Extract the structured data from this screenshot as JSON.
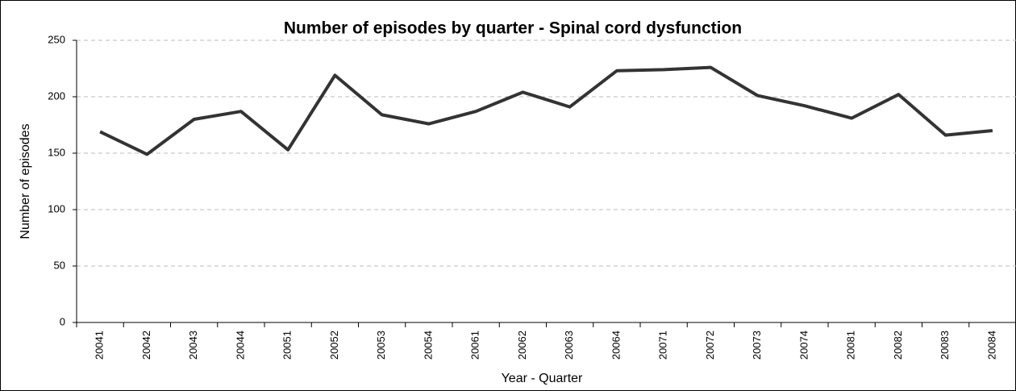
{
  "chart_data": {
    "type": "line",
    "title": "Number of episodes by quarter - Spinal cord dysfunction",
    "x_label": "Year - Quarter",
    "y_label": "Number of episodes",
    "categories": [
      "20041",
      "20042",
      "20043",
      "20044",
      "20051",
      "20052",
      "20053",
      "20054",
      "20061",
      "20062",
      "20063",
      "20064",
      "20071",
      "20072",
      "20073",
      "20074",
      "20081",
      "20082",
      "20083",
      "20084"
    ],
    "values": [
      169,
      149,
      180,
      187,
      153,
      219,
      184,
      176,
      187,
      204,
      191,
      223,
      224,
      226,
      201,
      192,
      181,
      202,
      166,
      170
    ],
    "color": "#333333",
    "ylim": [
      0,
      250
    ],
    "yticks": [
      0,
      50,
      100,
      150,
      200,
      250
    ],
    "grid": true
  }
}
